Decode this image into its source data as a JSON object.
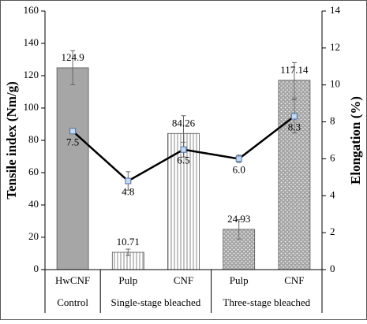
{
  "chart_data": {
    "type": "bar_line",
    "categories": [
      "HwCNF",
      "Pulp",
      "CNF",
      "Pulp",
      "CNF"
    ],
    "category_groups": [
      "Control",
      "Single-stage bleached",
      "Single-stage bleached",
      "Three-stage bleached",
      "Three-stage bleached"
    ],
    "ylabel": "Tensile index (Nm/g)",
    "y2label": "Elongation (%)",
    "ylim": [
      0,
      160
    ],
    "yticks": [
      0,
      20,
      40,
      60,
      80,
      100,
      120,
      140,
      160
    ],
    "y2lim": [
      0,
      14
    ],
    "y2ticks": [
      0,
      2,
      4,
      6,
      8,
      10,
      12,
      14
    ],
    "series": [
      {
        "name": "Tensile index",
        "kind": "bar",
        "color": "#a6a6a6",
        "patterns": [
          "solid",
          "vstripe",
          "vstripe",
          "dots",
          "dots"
        ],
        "values": [
          124.9,
          10.71,
          84.26,
          24.93,
          117.14
        ],
        "errors": [
          10.5,
          2,
          11,
          6,
          11
        ]
      },
      {
        "name": "Elongation",
        "kind": "line",
        "axis": "y2",
        "color": "#000000",
        "marker_color": "#c5d9f1",
        "values": [
          7.5,
          4.8,
          6.5,
          6.0,
          8.3
        ],
        "value_labels": [
          "7.5",
          "4.8",
          "6.5",
          "6.0",
          "8.3"
        ],
        "errors": [
          0,
          0.5,
          0.4,
          0.2,
          0.9
        ]
      }
    ]
  }
}
